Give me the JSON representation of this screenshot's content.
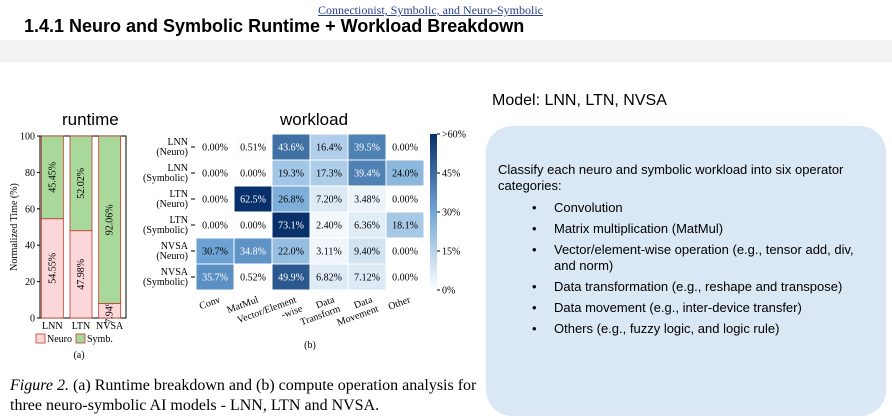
{
  "header": {
    "running_title": "Connectionist, Symbolic, and Neuro-Symbolic",
    "section_title": "1.4.1   Neuro and Symbolic Runtime + Workload Breakdown"
  },
  "labels": {
    "runtime": "runtime",
    "workload": "workload"
  },
  "model_line": "Model: LNN, LTN, NVSA",
  "panel": {
    "intro": "Classify each neuro and symbolic workload into six operator categories:",
    "bullet": "•",
    "items": [
      "Convolution",
      "Matrix multiplication (MatMul)",
      "Vector/element-wise operation (e.g., tensor add, div, and norm)",
      "Data transformation (e.g., reshape and transpose)",
      "Data movement (e.g., inter-device transfer)",
      "Others (e.g., fuzzy logic, and logic rule)"
    ]
  },
  "caption": {
    "fig": "Figure 2.",
    "text": " (a) Runtime breakdown and (b) compute operation analysis for three neuro-symbolic AI models - LNN, LTN and NVSA."
  },
  "chart_data": [
    {
      "type": "bar",
      "stacked": true,
      "ylabel": "Normalized Time (%)",
      "ylim": [
        0,
        100
      ],
      "yticks": [
        "0",
        "20",
        "40",
        "60",
        "80",
        "100"
      ],
      "categories": [
        "LNN",
        "LTN",
        "NVSA"
      ],
      "series": [
        {
          "name": "Neuro",
          "color": "#fbd7da",
          "values": [
            54.55,
            47.98,
            7.94
          ],
          "labels": [
            "54.55%",
            "47.98%",
            "7.94%"
          ]
        },
        {
          "name": "Symb.",
          "color": "#a8d99a",
          "values": [
            45.45,
            52.02,
            92.06
          ],
          "labels": [
            "45.45%",
            "52.02%",
            "92.06%"
          ]
        }
      ],
      "panel_label": "(a)"
    },
    {
      "type": "heatmap",
      "rows": [
        "LNN (Neuro)",
        "LNN (Symbolic)",
        "LTN (Neuro)",
        "LTN (Symbolic)",
        "NVSA (Neuro)",
        "NVSA (Symbolic)"
      ],
      "row_lines": [
        [
          "LNN",
          "(Neuro)"
        ],
        [
          "LNN",
          "(Symbolic)"
        ],
        [
          "LTN",
          "(Neuro)"
        ],
        [
          "LTN",
          "(Symbolic)"
        ],
        [
          "NVSA",
          "(Neuro)"
        ],
        [
          "NVSA",
          "(Symbolic)"
        ]
      ],
      "columns": [
        "Conv",
        "MatMul",
        "Vector/Element -wise",
        "Data Transform",
        "Data Movement",
        "Other"
      ],
      "column_lines": [
        [
          "Conv"
        ],
        [
          "MatMul"
        ],
        [
          "Vector/Element",
          "-wise"
        ],
        [
          "Data",
          "Transform"
        ],
        [
          "Data",
          "Movement"
        ],
        [
          "Other"
        ]
      ],
      "values": [
        [
          0.0,
          0.51,
          43.6,
          16.4,
          39.5,
          0.0
        ],
        [
          0.0,
          0.0,
          19.3,
          17.3,
          39.4,
          24.0
        ],
        [
          0.0,
          62.5,
          26.8,
          7.2,
          3.48,
          0.0
        ],
        [
          0.0,
          0.0,
          73.1,
          2.4,
          6.36,
          18.1
        ],
        [
          30.7,
          34.8,
          22.0,
          3.11,
          9.4,
          0.0
        ],
        [
          35.7,
          0.52,
          49.9,
          6.82,
          7.12,
          0.0
        ]
      ],
      "value_labels": [
        [
          "0.00%",
          "0.51%",
          "43.6%",
          "16.4%",
          "39.5%",
          "0.00%"
        ],
        [
          "0.00%",
          "0.00%",
          "19.3%",
          "17.3%",
          "39.4%",
          "24.0%"
        ],
        [
          "0.00%",
          "62.5%",
          "26.8%",
          "7.20%",
          "3.48%",
          "0.00%"
        ],
        [
          "0.00%",
          "0.00%",
          "73.1%",
          "2.40%",
          "6.36%",
          "18.1%"
        ],
        [
          "30.7%",
          "34.8%",
          "22.0%",
          "3.11%",
          "9.40%",
          "0.00%"
        ],
        [
          "35.7%",
          "0.52%",
          "49.9%",
          "6.82%",
          "7.12%",
          "0.00%"
        ]
      ],
      "colorbar": {
        "ticks": [
          ">60%",
          "45%",
          "30%",
          "15%",
          "0%"
        ],
        "max": 60
      },
      "colors": {
        "low": "#ffffff",
        "mid": "#6fa6d6",
        "high": "#08306b"
      },
      "panel_label": "(b)"
    }
  ]
}
